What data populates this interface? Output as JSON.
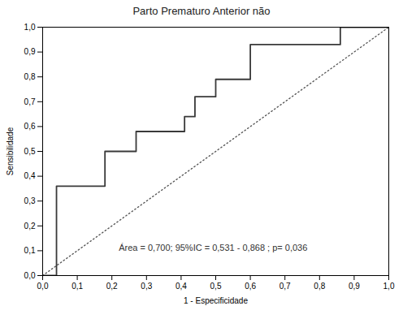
{
  "chart_data": {
    "type": "line",
    "title": "Parto Prematuro Anterior não",
    "xlabel": "1 - Especificidade",
    "ylabel": "Sensibilidade",
    "annotation": "Área = 0,700; 95%IC = 0,531 - 0,868 ; p= 0,036",
    "xlim": [
      0.0,
      1.0
    ],
    "ylim": [
      0.0,
      1.0
    ],
    "xticks": [
      {
        "value": 0.0,
        "label": "0,0"
      },
      {
        "value": 0.1,
        "label": "0,1"
      },
      {
        "value": 0.2,
        "label": "0,2"
      },
      {
        "value": 0.3,
        "label": "0,3"
      },
      {
        "value": 0.4,
        "label": "0,4"
      },
      {
        "value": 0.5,
        "label": "0,5"
      },
      {
        "value": 0.6,
        "label": "0,6"
      },
      {
        "value": 0.7,
        "label": "0,7"
      },
      {
        "value": 0.8,
        "label": "0,8"
      },
      {
        "value": 0.9,
        "label": "0,9"
      },
      {
        "value": 1.0,
        "label": "1,0"
      }
    ],
    "yticks": [
      {
        "value": 0.0,
        "label": "0,0"
      },
      {
        "value": 0.1,
        "label": "0,1"
      },
      {
        "value": 0.2,
        "label": "0,2"
      },
      {
        "value": 0.3,
        "label": "0,3"
      },
      {
        "value": 0.4,
        "label": "0,4"
      },
      {
        "value": 0.5,
        "label": "0,5"
      },
      {
        "value": 0.6,
        "label": "0,6"
      },
      {
        "value": 0.7,
        "label": "0,7"
      },
      {
        "value": 0.8,
        "label": "0,8"
      },
      {
        "value": 0.9,
        "label": "0,9"
      },
      {
        "value": 1.0,
        "label": "1,0"
      }
    ],
    "series": [
      {
        "x": [
          0,
          1
        ],
        "values": [
          0,
          1
        ],
        "color": "#555555",
        "line_style": "dotted"
      },
      {
        "x": [
          0.0,
          0.0,
          0.04,
          0.04,
          0.18,
          0.18,
          0.27,
          0.27,
          0.41,
          0.41,
          0.44,
          0.44,
          0.5,
          0.5,
          0.6,
          0.6,
          0.86,
          0.86,
          1.0
        ],
        "values": [
          0.0,
          0.0,
          0.0,
          0.36,
          0.36,
          0.5,
          0.5,
          0.58,
          0.58,
          0.64,
          0.64,
          0.72,
          0.72,
          0.79,
          0.79,
          0.93,
          0.93,
          1.0,
          1.0
        ],
        "color": "#3a3a3a",
        "line_style": "solid"
      }
    ],
    "grid": false
  }
}
